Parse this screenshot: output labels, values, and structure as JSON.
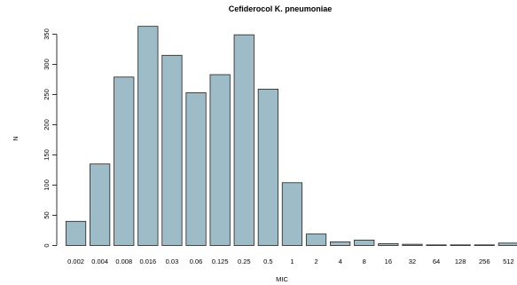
{
  "chart_data": {
    "type": "bar",
    "title": "Cefiderocol K. pneumoniae",
    "xlabel": "MIC",
    "ylabel": "N",
    "categories": [
      "0.002",
      "0.004",
      "0.008",
      "0.016",
      "0.03",
      "0.06",
      "0.125",
      "0.25",
      "0.5",
      "1",
      "2",
      "4",
      "8",
      "16",
      "32",
      "64",
      "128",
      "256",
      "512"
    ],
    "values": [
      40,
      135,
      279,
      363,
      315,
      253,
      283,
      349,
      259,
      104,
      19,
      6,
      9,
      3,
      2,
      1,
      1,
      1,
      4
    ],
    "yticks": [
      0,
      50,
      100,
      150,
      200,
      250,
      300,
      350
    ],
    "ylim": [
      0,
      350
    ],
    "bar_color": "#9dbcc7",
    "grid": false
  }
}
